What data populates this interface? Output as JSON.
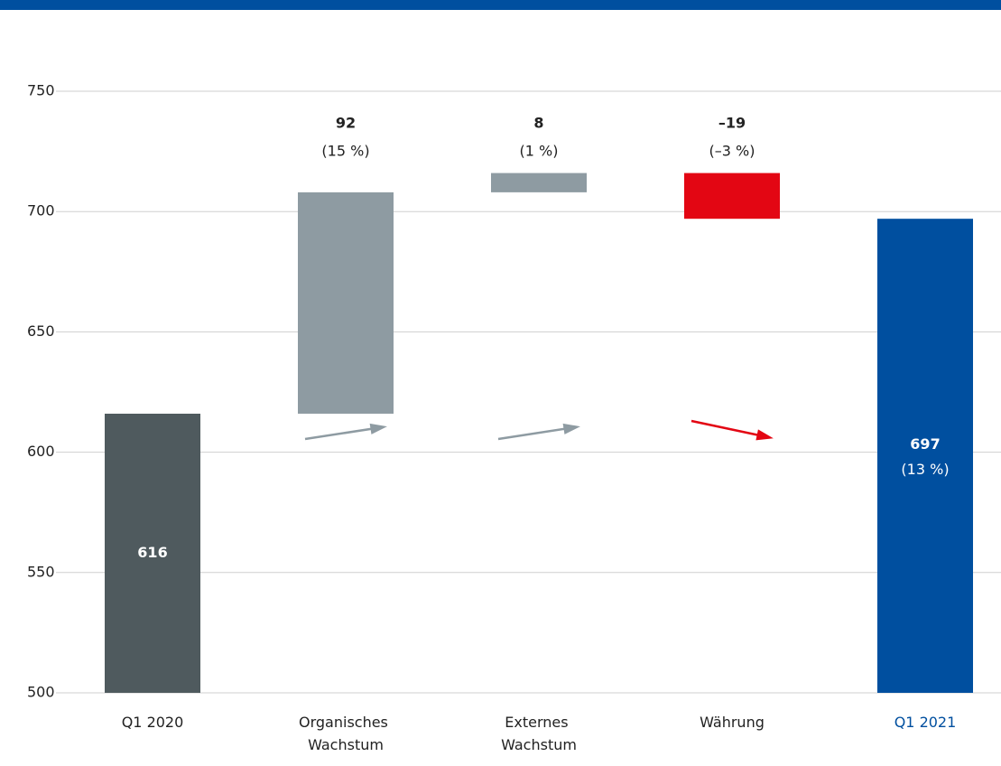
{
  "chart_data": {
    "type": "waterfall",
    "categories": [
      "Q1 2020",
      "Organisches\nWachstum",
      "Externes\nWachstum",
      "Währung",
      "Q1 2021"
    ],
    "measure": [
      "absolute",
      "relative",
      "relative",
      "relative",
      "total"
    ],
    "values": [
      616,
      92,
      8,
      -19,
      697
    ],
    "value_labels": [
      "616",
      "92",
      "8",
      "–19",
      "697"
    ],
    "percent_labels": [
      null,
      "(15 %)",
      "(1 %)",
      "(–3 %)",
      "(13 %)"
    ],
    "colors": [
      "#4f5a5e",
      "#8e9ba2",
      "#8e9ba2",
      "#e30613",
      "#004f9f"
    ],
    "label_colors": [
      "#222222",
      "#222222",
      "#222222",
      "#222222",
      "#004f9f"
    ],
    "ylim": [
      500,
      750
    ],
    "yticks": [
      500,
      550,
      600,
      650,
      700,
      750
    ],
    "grid": true
  }
}
